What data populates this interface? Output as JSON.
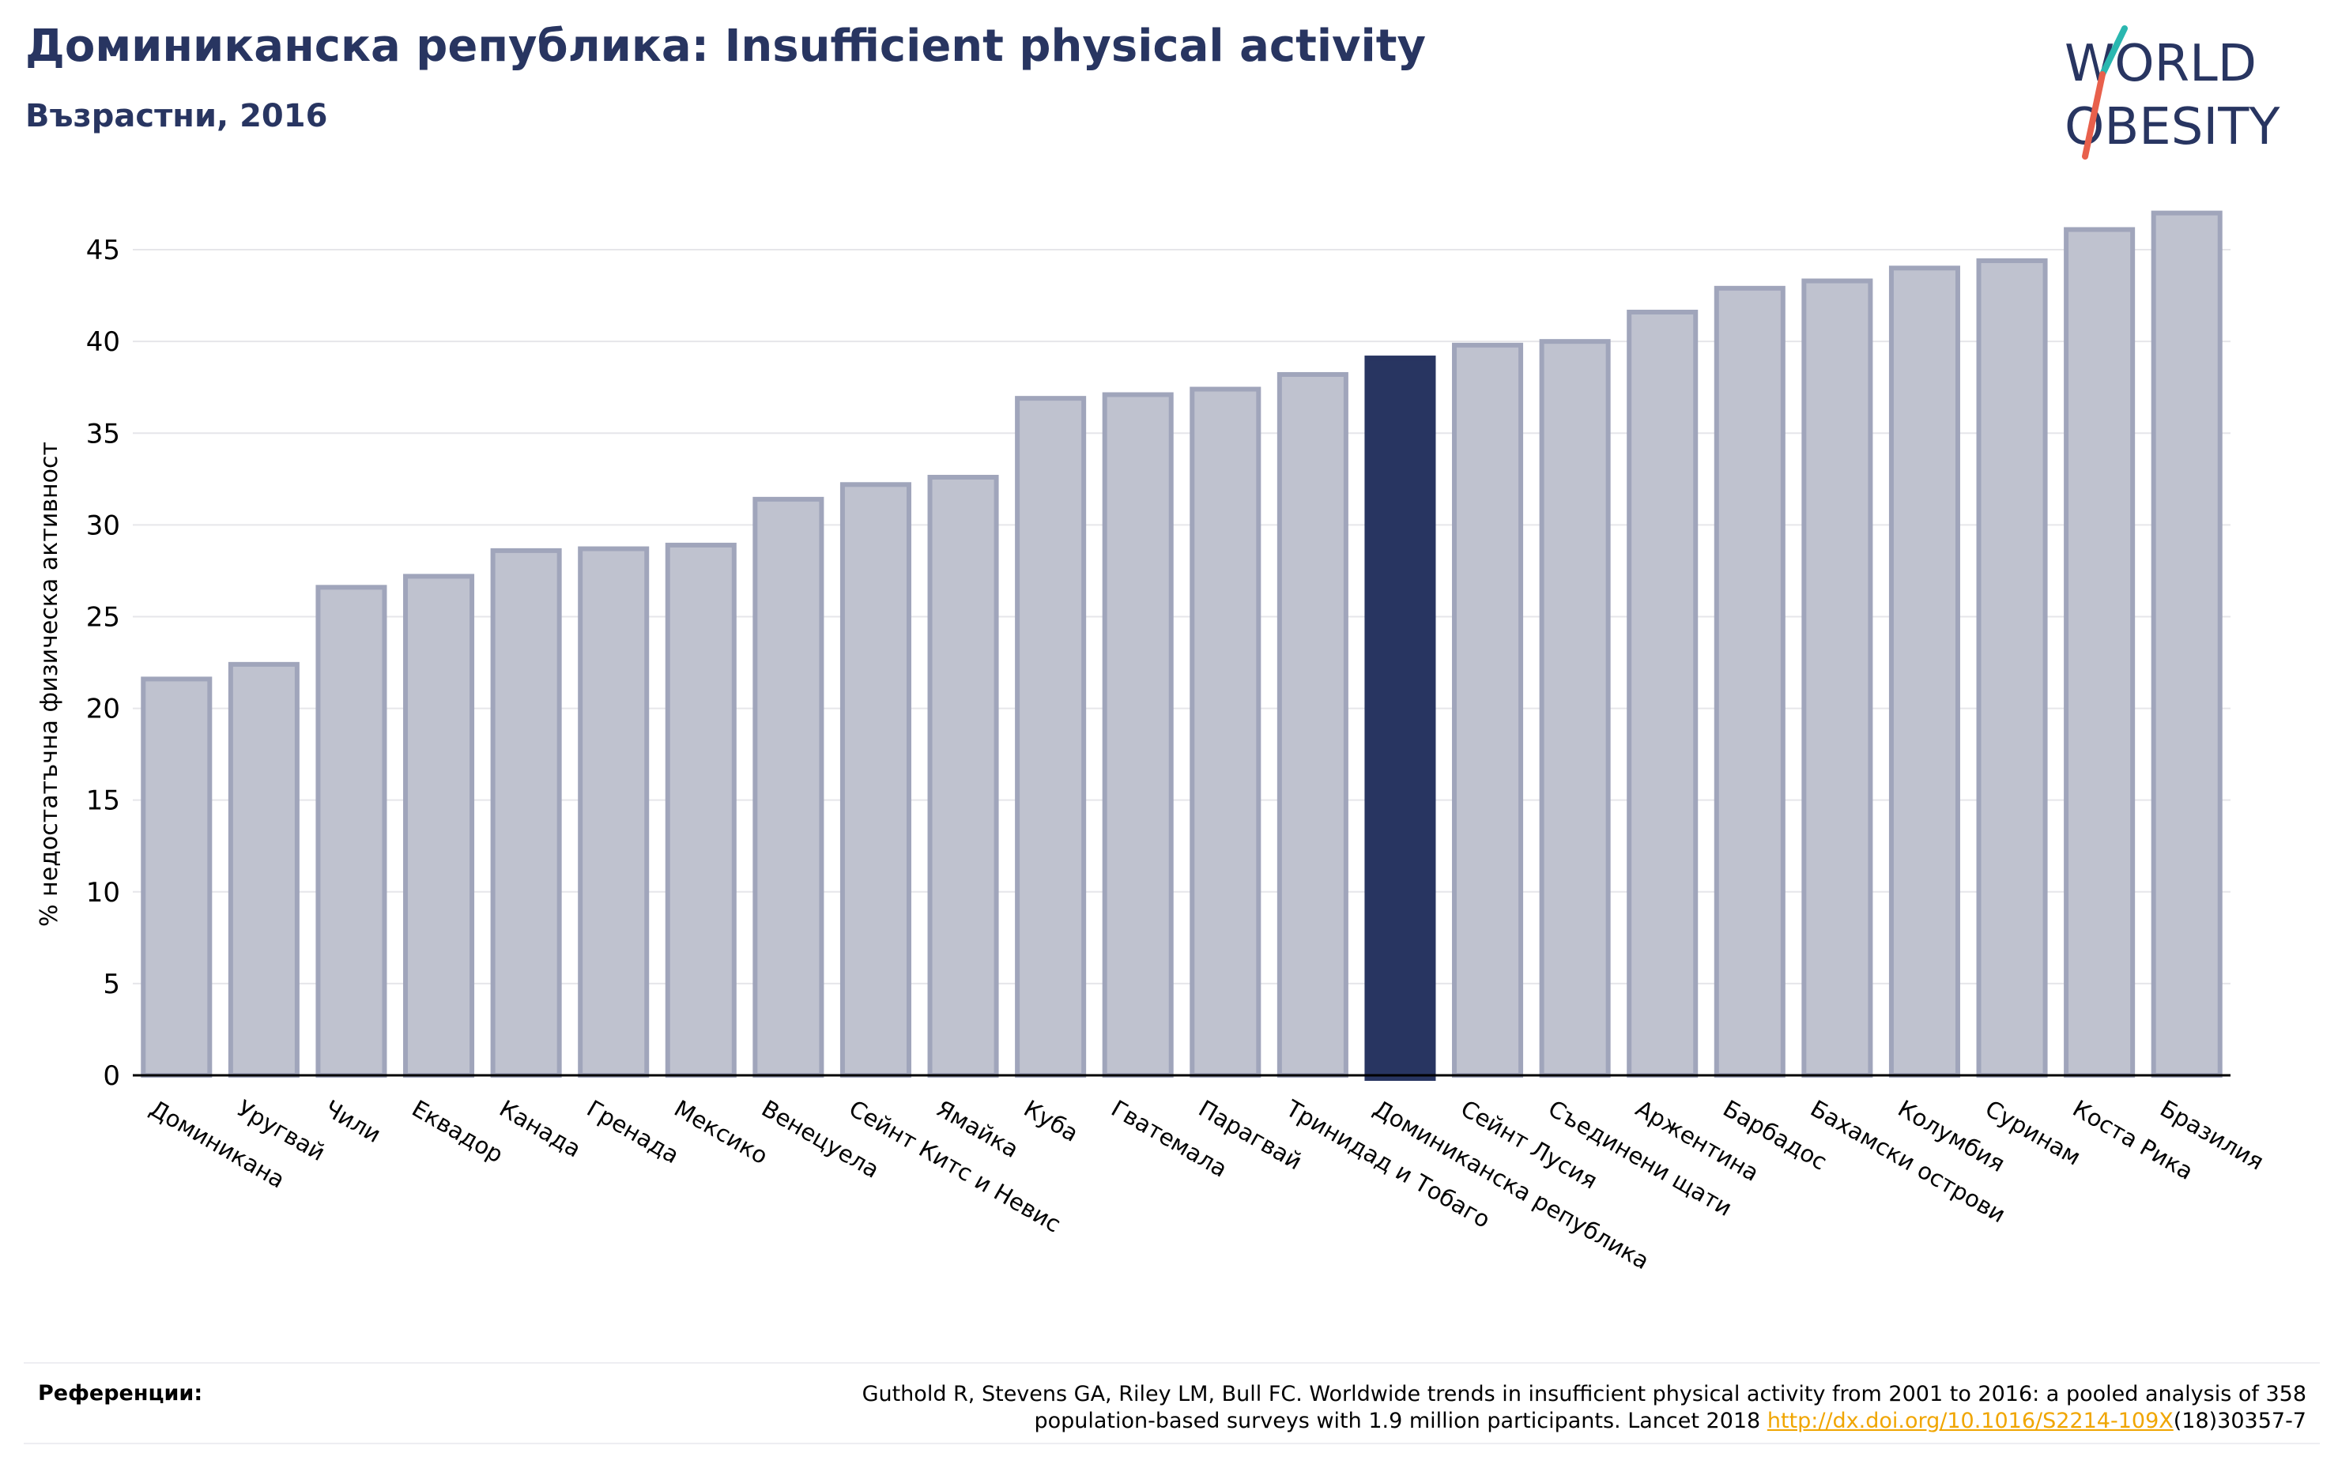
{
  "header": {
    "title": "Доминиканска република: Insufficient physical activity",
    "subtitle": "Възрастни, 2016"
  },
  "logo": {
    "line1": "WORLD",
    "line2": "OBESITY"
  },
  "chart_data": {
    "type": "bar",
    "ylabel": "% недостатъчна физическа активност",
    "ylim": [
      0,
      47.5
    ],
    "yticks": [
      0,
      5,
      10,
      15,
      20,
      25,
      30,
      35,
      40,
      45
    ],
    "grid": true,
    "highlight": "Доминиканска република",
    "colors": {
      "bar": "#bfc2cf",
      "bar_edge": "#a0a5bb",
      "highlight": "#283561",
      "grid": "#e6e6ea",
      "axis": "#000000"
    },
    "categories": [
      "Доминикана",
      "Уругвай",
      "Чили",
      "Еквадор",
      "Канада",
      "Гренада",
      "Мексико",
      "Венецуела",
      "Сейнт Китс и Невис",
      "Ямайка",
      "Куба",
      "Гватемала",
      "Парагвай",
      "Тринидад и Тобаго",
      "Доминиканска република",
      "Сейнт Лусия",
      "Съединени щати",
      "Аржентина",
      "Барбадос",
      "Бахамски острови",
      "Колумбия",
      "Суринам",
      "Коста Рика",
      "Бразилия"
    ],
    "values": [
      21.6,
      22.4,
      26.6,
      27.2,
      28.6,
      28.7,
      28.9,
      31.4,
      32.2,
      32.6,
      36.9,
      37.1,
      37.4,
      38.2,
      39.1,
      39.8,
      40.0,
      41.6,
      42.9,
      43.3,
      44.0,
      44.4,
      46.1,
      47.0
    ]
  },
  "references": {
    "label": "Референции:",
    "text": "Guthold R, Stevens GA, Riley LM, Bull FC. Worldwide trends in insufficient physical activity from 2001 to 2016: a pooled analysis of 358",
    "text2": "population-based surveys with 1.9 million participants. Lancet 2018 ",
    "link": "http://dx.doi.org/10.1016/S2214-109X",
    "suffix": "(18)30357-7"
  }
}
